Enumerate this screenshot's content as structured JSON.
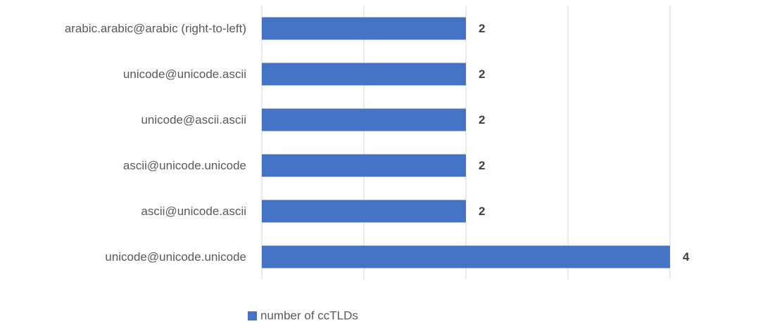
{
  "chart_data": {
    "type": "bar",
    "orientation": "horizontal",
    "categories": [
      "arabic.arabic@arabic (right-to-left)",
      "unicode@unicode.ascii",
      "unicode@ascii.ascii",
      "ascii@unicode.unicode",
      "ascii@unicode.ascii",
      "unicode@unicode.unicode"
    ],
    "series": [
      {
        "name": "number of ccTLDs",
        "color": "#4472c4",
        "values": [
          2,
          2,
          2,
          2,
          2,
          4
        ]
      }
    ],
    "xlim": [
      0,
      4
    ],
    "xticks": [
      0,
      1,
      2,
      3,
      4
    ],
    "grid": true,
    "legend": "bottom"
  }
}
